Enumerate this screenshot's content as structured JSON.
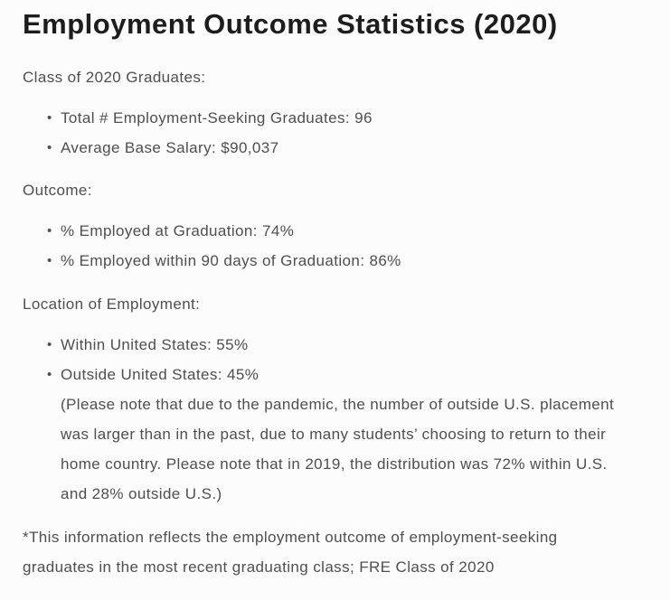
{
  "page": {
    "title": "Employment Outcome Statistics (2020)",
    "sections": [
      {
        "label": "Class of 2020 Graduates:",
        "bullets": [
          {
            "text": "Total # Employment-Seeking Graduates: 96"
          },
          {
            "text": "Average Base Salary: $90,037"
          }
        ]
      },
      {
        "label": "Outcome:",
        "bullets": [
          {
            "text": "% Employed at Graduation: 74%"
          },
          {
            "text": "% Employed within 90 days of Graduation: 86%"
          }
        ]
      },
      {
        "label": "Location of Employment:",
        "bullets": [
          {
            "text": "Within United States: 55%"
          },
          {
            "text": "Outside United States: 45%",
            "note": "(Please note that due to the pandemic, the number of outside U.S. placement was larger than in the past, due to many students’ choosing to return to their home country. Please note that in 2019, the distribution was 72% within U.S. and 28% outside U.S.)"
          }
        ]
      }
    ],
    "footnote": "*This information reflects the employment outcome of employment-seeking graduates in the most recent graduating class; FRE Class of 2020"
  },
  "glyphs": {
    "bullet": "•"
  },
  "colors": {
    "background": "#fcfcfc",
    "title": "#1d1d1d",
    "body": "#4f4f4f"
  }
}
